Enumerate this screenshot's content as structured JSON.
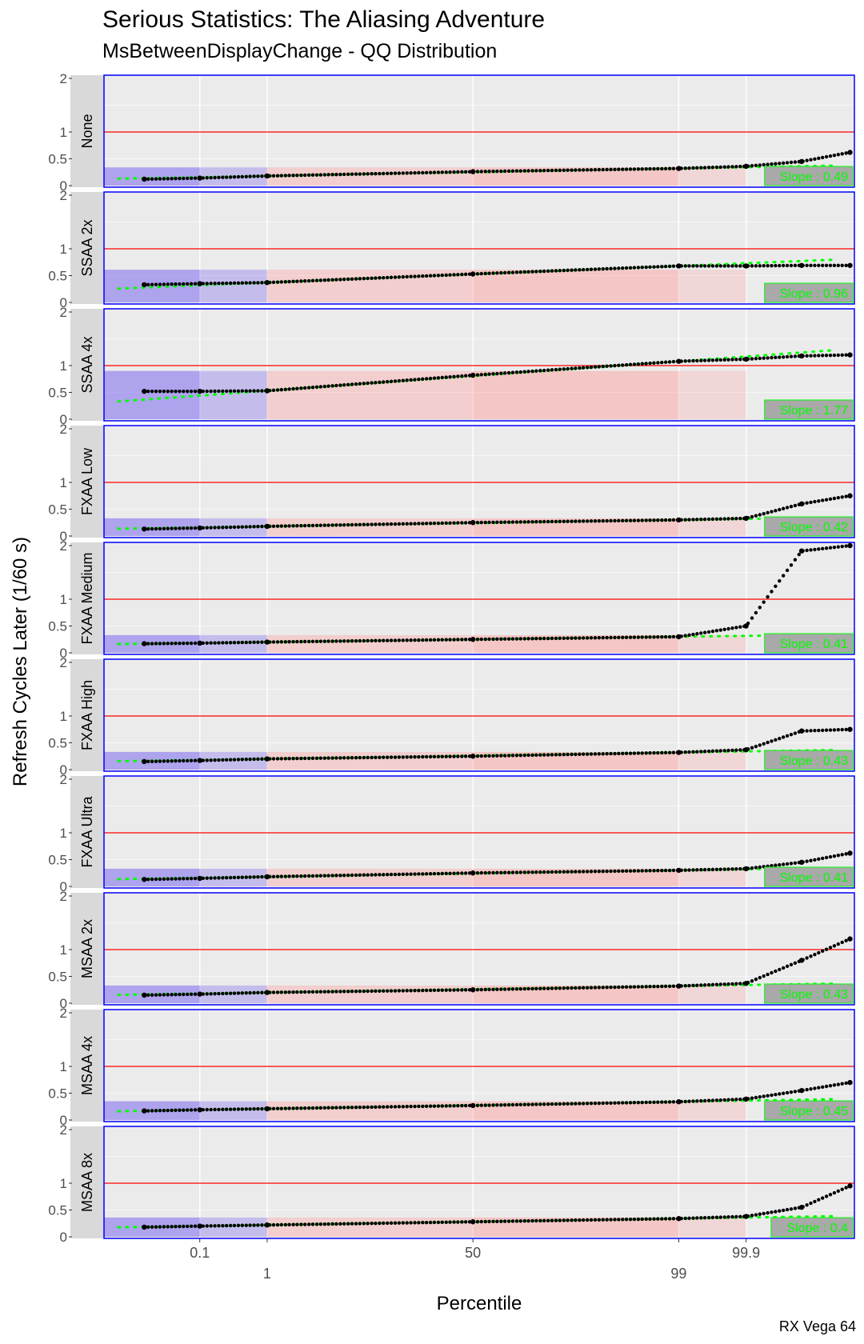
{
  "chart_data": {
    "type": "scatter",
    "title": "Serious Statistics: The Aliasing Adventure",
    "subtitle": "MsBetweenDisplayChange - QQ Distribution",
    "xlabel": "Percentile",
    "ylabel": "Refresh Cycles Later (1/60 s)",
    "caption": "RX Vega 64",
    "x_ticks": [
      "0.1",
      "1",
      "50",
      "99",
      "99.9"
    ],
    "y_ticks": [
      "0",
      "0.5",
      "1",
      "2"
    ],
    "ylim": [
      0,
      2
    ],
    "reference_line_y": 1,
    "colors": {
      "panel_background": "#ebebeb",
      "panel_border": "#0000ff",
      "strip_background": "#d9d9d9",
      "reference_line": "#ff0000",
      "points": "#000000",
      "fit_line": "#00ff00",
      "slope_label": "#00ff00",
      "slope_box": "#a9a9a9",
      "band_low": "#7b68ee",
      "band_high": "#ff9999"
    },
    "series": [
      {
        "name": "None",
        "slope_label": "Slope : 0.49",
        "points": [
          [
            0.01,
            0.12
          ],
          [
            0.1,
            0.14
          ],
          [
            1,
            0.18
          ],
          [
            50,
            0.26
          ],
          [
            99,
            0.32
          ],
          [
            99.9,
            0.36
          ],
          [
            99.99,
            0.45
          ],
          [
            99.999,
            0.62
          ]
        ]
      },
      {
        "name": "SSAA 2x",
        "slope_label": "Slope : 0.96",
        "points": [
          [
            0.01,
            0.33
          ],
          [
            0.1,
            0.35
          ],
          [
            1,
            0.37
          ],
          [
            50,
            0.53
          ],
          [
            99,
            0.68
          ],
          [
            99.9,
            0.68
          ],
          [
            99.99,
            0.69
          ],
          [
            99.999,
            0.69
          ]
        ]
      },
      {
        "name": "SSAA 4x",
        "slope_label": "Slope : 1.77",
        "points": [
          [
            0.01,
            0.52
          ],
          [
            0.1,
            0.52
          ],
          [
            1,
            0.53
          ],
          [
            50,
            0.82
          ],
          [
            99,
            1.08
          ],
          [
            99.9,
            1.12
          ],
          [
            99.99,
            1.18
          ],
          [
            99.999,
            1.2
          ]
        ]
      },
      {
        "name": "FXAA Low",
        "slope_label": "Slope : 0.42",
        "points": [
          [
            0.01,
            0.13
          ],
          [
            0.1,
            0.15
          ],
          [
            1,
            0.18
          ],
          [
            50,
            0.25
          ],
          [
            99,
            0.3
          ],
          [
            99.9,
            0.33
          ],
          [
            99.99,
            0.6
          ],
          [
            99.999,
            0.75
          ]
        ]
      },
      {
        "name": "FXAA Medium",
        "slope_label": "Slope : 0.41",
        "points": [
          [
            0.01,
            0.17
          ],
          [
            0.1,
            0.18
          ],
          [
            1,
            0.2
          ],
          [
            50,
            0.25
          ],
          [
            99,
            0.3
          ],
          [
            99.9,
            0.5
          ],
          [
            99.99,
            1.9
          ],
          [
            99.999,
            2.0
          ]
        ]
      },
      {
        "name": "FXAA High",
        "slope_label": "Slope : 0.43",
        "points": [
          [
            0.01,
            0.15
          ],
          [
            0.1,
            0.17
          ],
          [
            1,
            0.2
          ],
          [
            50,
            0.25
          ],
          [
            99,
            0.32
          ],
          [
            99.9,
            0.37
          ],
          [
            99.99,
            0.72
          ],
          [
            99.999,
            0.75
          ]
        ]
      },
      {
        "name": "FXAA Ultra",
        "slope_label": "Slope : 0.41",
        "points": [
          [
            0.01,
            0.13
          ],
          [
            0.1,
            0.15
          ],
          [
            1,
            0.18
          ],
          [
            50,
            0.25
          ],
          [
            99,
            0.3
          ],
          [
            99.9,
            0.33
          ],
          [
            99.99,
            0.45
          ],
          [
            99.999,
            0.62
          ]
        ]
      },
      {
        "name": "MSAA 2x",
        "slope_label": "Slope : 0.43",
        "points": [
          [
            0.01,
            0.15
          ],
          [
            0.1,
            0.17
          ],
          [
            1,
            0.2
          ],
          [
            50,
            0.25
          ],
          [
            99,
            0.32
          ],
          [
            99.9,
            0.37
          ],
          [
            99.99,
            0.8
          ],
          [
            99.999,
            1.2
          ]
        ]
      },
      {
        "name": "MSAA 4x",
        "slope_label": "Slope : 0.45",
        "points": [
          [
            0.01,
            0.17
          ],
          [
            0.1,
            0.19
          ],
          [
            1,
            0.21
          ],
          [
            50,
            0.27
          ],
          [
            99,
            0.34
          ],
          [
            99.9,
            0.39
          ],
          [
            99.99,
            0.55
          ],
          [
            99.999,
            0.7
          ]
        ]
      },
      {
        "name": "MSAA 8x",
        "slope_label": "Slope : 0.4",
        "points": [
          [
            0.01,
            0.18
          ],
          [
            0.1,
            0.2
          ],
          [
            1,
            0.22
          ],
          [
            50,
            0.28
          ],
          [
            99,
            0.34
          ],
          [
            99.9,
            0.38
          ],
          [
            99.99,
            0.55
          ],
          [
            99.999,
            0.95
          ]
        ]
      }
    ]
  }
}
